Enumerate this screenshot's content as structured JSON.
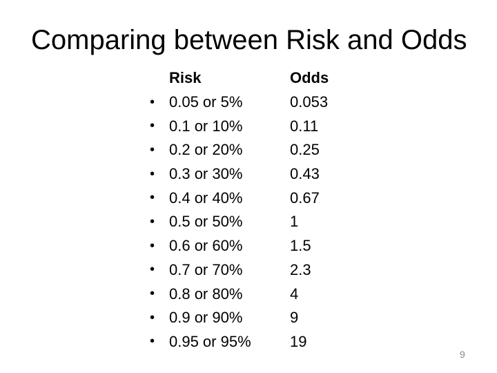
{
  "slide": {
    "title": "Comparing between Risk and Odds",
    "page_number": "9",
    "table": {
      "bullet": "•",
      "headers": {
        "risk": "Risk",
        "odds": "Odds"
      },
      "rows": [
        {
          "risk": "0.05 or 5%",
          "odds": "0.053"
        },
        {
          "risk": "0.1 or 10%",
          "odds": "0.11"
        },
        {
          "risk": "0.2 or 20%",
          "odds": "0.25"
        },
        {
          "risk": "0.3 or 30%",
          "odds": "0.43"
        },
        {
          "risk": "0.4 or 40%",
          "odds": "0.67"
        },
        {
          "risk": "0.5 or 50%",
          "odds": "1"
        },
        {
          "risk": "0.6 or 60%",
          "odds": "1.5"
        },
        {
          "risk": "0.7 or 70%",
          "odds": "2.3"
        },
        {
          "risk": "0.8 or 80%",
          "odds": "4"
        },
        {
          "risk": "0.9 or 90%",
          "odds": "9"
        },
        {
          "risk": "0.95 or 95%",
          "odds": "19"
        }
      ]
    },
    "colors": {
      "background": "#ffffff",
      "text": "#000000",
      "page_number": "#8a8a8a"
    }
  }
}
